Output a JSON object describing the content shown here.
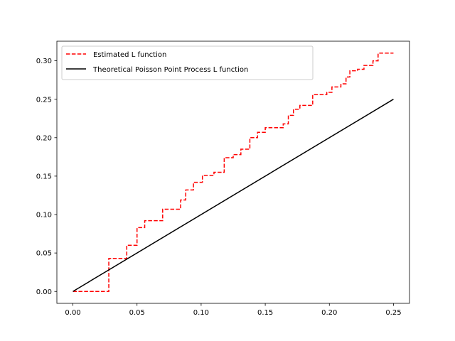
{
  "chart_data": {
    "type": "line",
    "title": "",
    "xlabel": "",
    "ylabel": "",
    "xlim": [
      -0.0125,
      0.2625
    ],
    "ylim": [
      -0.0155,
      0.3255
    ],
    "xticks": [
      0.0,
      0.05,
      0.1,
      0.15,
      0.2,
      0.25
    ],
    "xtick_labels": [
      "0.00",
      "0.05",
      "0.10",
      "0.15",
      "0.20",
      "0.25"
    ],
    "yticks": [
      0.0,
      0.05,
      0.1,
      0.15,
      0.2,
      0.25,
      0.3
    ],
    "ytick_labels": [
      "0.00",
      "0.05",
      "0.10",
      "0.15",
      "0.20",
      "0.25",
      "0.30"
    ],
    "grid": false,
    "legend_position": "upper-left",
    "series": [
      {
        "name": "Estimated L function",
        "color": "#ff0000",
        "style": "dashed",
        "step": true,
        "x": [
          0.0,
          0.027,
          0.028,
          0.041,
          0.042,
          0.049,
          0.05,
          0.055,
          0.056,
          0.069,
          0.07,
          0.083,
          0.084,
          0.087,
          0.088,
          0.093,
          0.094,
          0.1,
          0.101,
          0.109,
          0.11,
          0.117,
          0.118,
          0.124,
          0.125,
          0.13,
          0.131,
          0.137,
          0.138,
          0.143,
          0.144,
          0.149,
          0.15,
          0.163,
          0.164,
          0.167,
          0.168,
          0.171,
          0.172,
          0.176,
          0.177,
          0.186,
          0.187,
          0.197,
          0.198,
          0.201,
          0.202,
          0.208,
          0.209,
          0.212,
          0.213,
          0.215,
          0.216,
          0.221,
          0.222,
          0.226,
          0.227,
          0.233,
          0.234,
          0.237,
          0.238,
          0.25
        ],
        "y": [
          0.0,
          0.0,
          0.043,
          0.043,
          0.06,
          0.06,
          0.083,
          0.083,
          0.092,
          0.092,
          0.107,
          0.107,
          0.119,
          0.119,
          0.132,
          0.132,
          0.142,
          0.142,
          0.151,
          0.151,
          0.155,
          0.155,
          0.174,
          0.174,
          0.178,
          0.178,
          0.185,
          0.185,
          0.2,
          0.2,
          0.207,
          0.207,
          0.213,
          0.213,
          0.218,
          0.218,
          0.229,
          0.229,
          0.237,
          0.237,
          0.242,
          0.242,
          0.256,
          0.256,
          0.259,
          0.259,
          0.266,
          0.266,
          0.27,
          0.27,
          0.279,
          0.279,
          0.287,
          0.287,
          0.289,
          0.289,
          0.294,
          0.294,
          0.3,
          0.3,
          0.31,
          0.31
        ]
      },
      {
        "name": "Theoretical Poisson Point Process L function",
        "color": "#000000",
        "style": "solid",
        "step": false,
        "x": [
          0.0,
          0.25
        ],
        "y": [
          0.0,
          0.25
        ]
      }
    ]
  }
}
